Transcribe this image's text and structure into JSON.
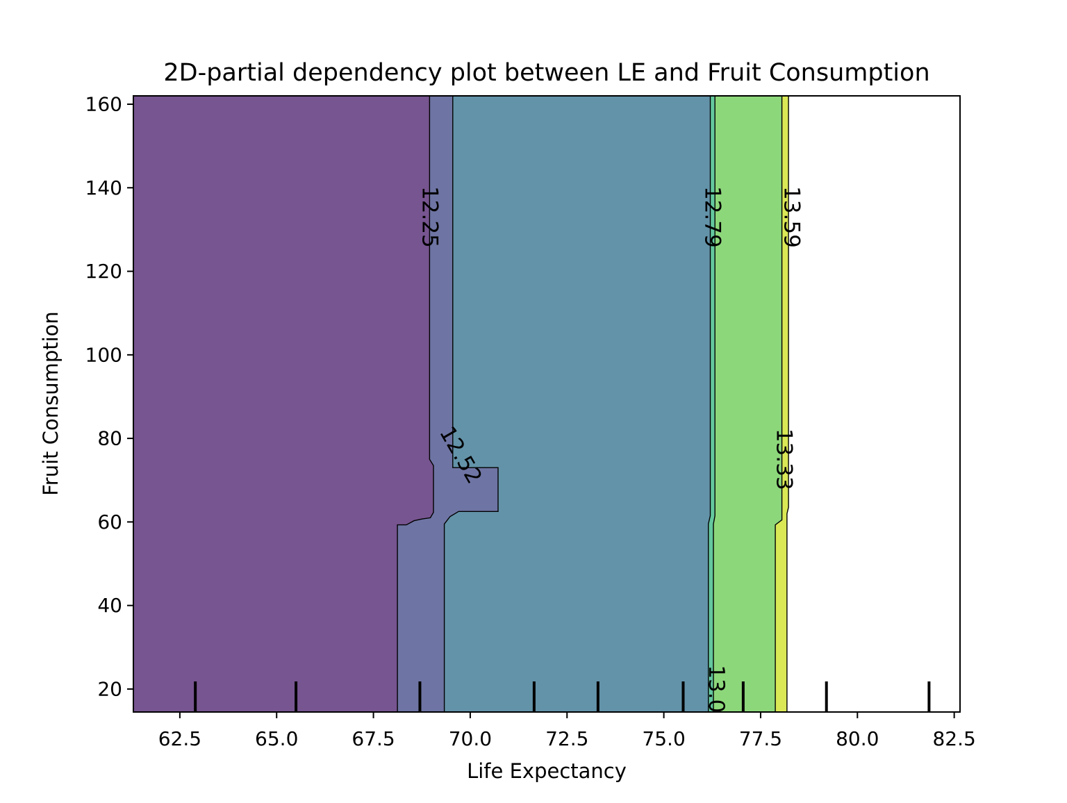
{
  "chart_data": {
    "type": "heatmap",
    "subtype": "filled-contour",
    "title": "2D-partial dependency plot between LE and Fruit Consumption",
    "xlabel": "Life Expectancy",
    "ylabel": "Fruit Consumption",
    "xlim": [
      61.3,
      82.65
    ],
    "ylim": [
      14.5,
      162.0
    ],
    "grid": false,
    "legend": "none",
    "x_ticks": [
      62.5,
      65.0,
      67.5,
      70.0,
      72.5,
      75.0,
      77.5,
      80.0,
      82.5
    ],
    "x_tick_labels": [
      "62.5",
      "65.0",
      "67.5",
      "70.0",
      "72.5",
      "75.0",
      "77.5",
      "80.0",
      "82.5"
    ],
    "y_ticks": [
      20,
      40,
      60,
      80,
      100,
      120,
      140,
      160
    ],
    "y_tick_labels": [
      "20",
      "40",
      "60",
      "80",
      "100",
      "120",
      "140",
      "160"
    ],
    "contour_levels": [
      {
        "level": "12.25",
        "x_above_62": 69.0,
        "x_below_59": 68.1
      },
      {
        "level": "12.52",
        "x_above_62": 69.55,
        "x_below_59": 69.35
      },
      {
        "level": "12.79",
        "x_above_62": 76.25,
        "x_below_59": 76.2
      },
      {
        "level": "13.0",
        "x_above_62": 76.4,
        "x_below_59": 76.3
      },
      {
        "level": "13.33",
        "x_above_62": 78.1,
        "x_below_59": 77.9
      },
      {
        "level": "13.59",
        "x_above_62": 78.25,
        "x_below_59": 78.25
      }
    ],
    "contour_labels": [
      {
        "text": "12.25",
        "x": 68.95,
        "y": 133,
        "rotation": 90
      },
      {
        "text": "12.52",
        "x": 69.75,
        "y": 76,
        "rotation": 60
      },
      {
        "text": "12.79",
        "x": 76.25,
        "y": 133,
        "rotation": 90
      },
      {
        "text": "13.59",
        "x": 78.3,
        "y": 133,
        "rotation": 90
      },
      {
        "text": "13.33",
        "x": 78.1,
        "y": 75,
        "rotation": 90
      },
      {
        "text": "13.0",
        "x": 76.35,
        "y": 20,
        "rotation": 90
      }
    ],
    "fill_colors": [
      "#775590",
      "#6e75a4",
      "#6393a9",
      "#64c79e",
      "#8dd77b",
      "#dae856"
    ],
    "rug_x": [
      62.9,
      65.5,
      68.7,
      71.65,
      73.3,
      75.5,
      77.05,
      79.2,
      81.85
    ]
  }
}
